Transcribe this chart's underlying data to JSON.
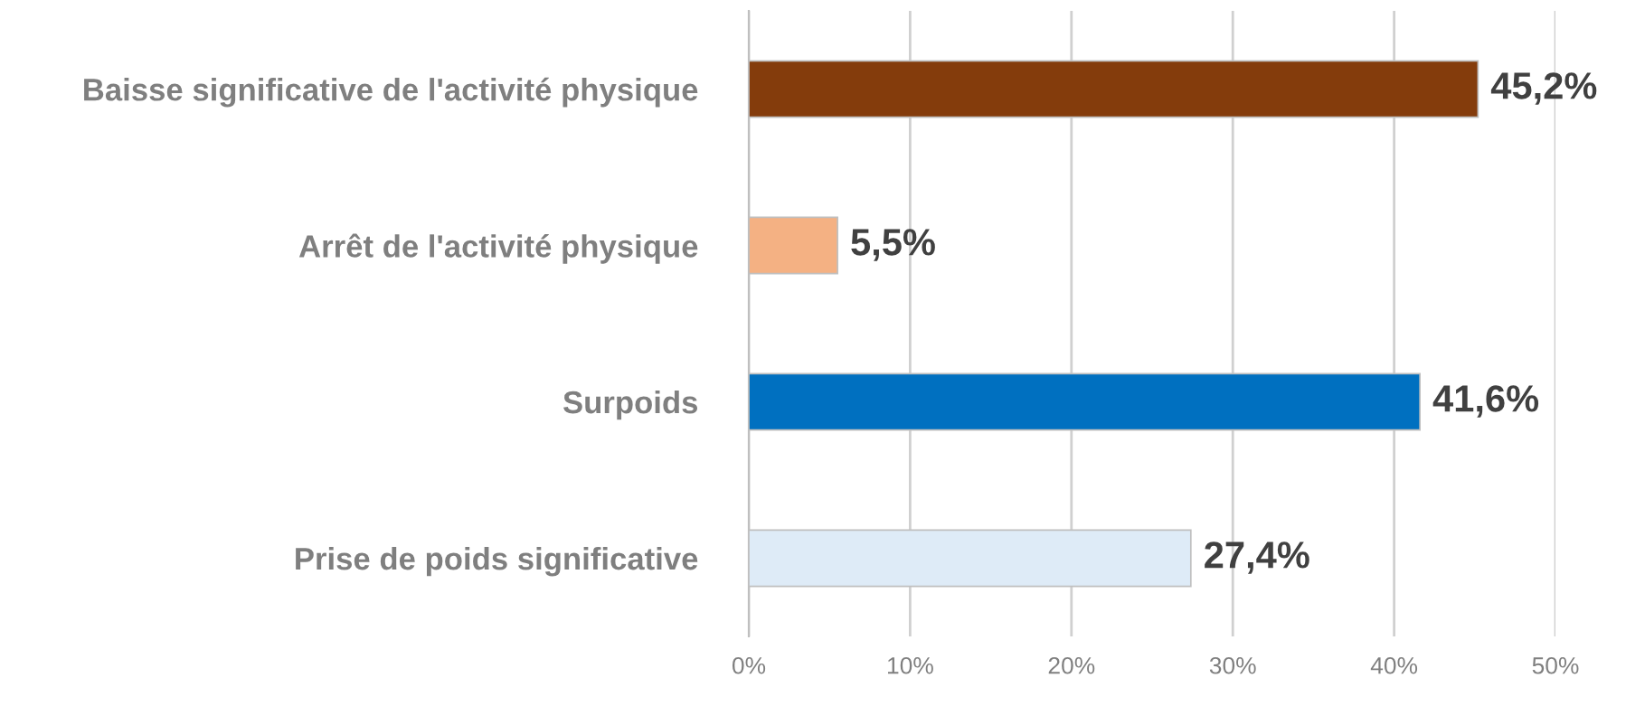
{
  "chart_data": {
    "type": "bar",
    "orientation": "horizontal",
    "categories": [
      "Baisse significative de l'activité physique",
      "Arrêt de l'activité physique",
      "Surpoids",
      "Prise de poids significative"
    ],
    "values": [
      45.2,
      5.5,
      41.6,
      27.4
    ],
    "colors": [
      "#843c0c",
      "#f4b183",
      "#0070c0",
      "#deebf7"
    ],
    "value_labels": [
      "45,2%",
      "5,5%",
      "41,6%",
      "27,4%"
    ],
    "xlim": [
      0,
      50
    ],
    "xticks": [
      {
        "value": 0,
        "label": "0%"
      },
      {
        "value": 10,
        "label": "10%"
      },
      {
        "value": 20,
        "label": "20%"
      },
      {
        "value": 30,
        "label": "30%"
      },
      {
        "value": 40,
        "label": "40%"
      },
      {
        "value": 50,
        "label": "50%"
      }
    ],
    "grid": "x"
  }
}
